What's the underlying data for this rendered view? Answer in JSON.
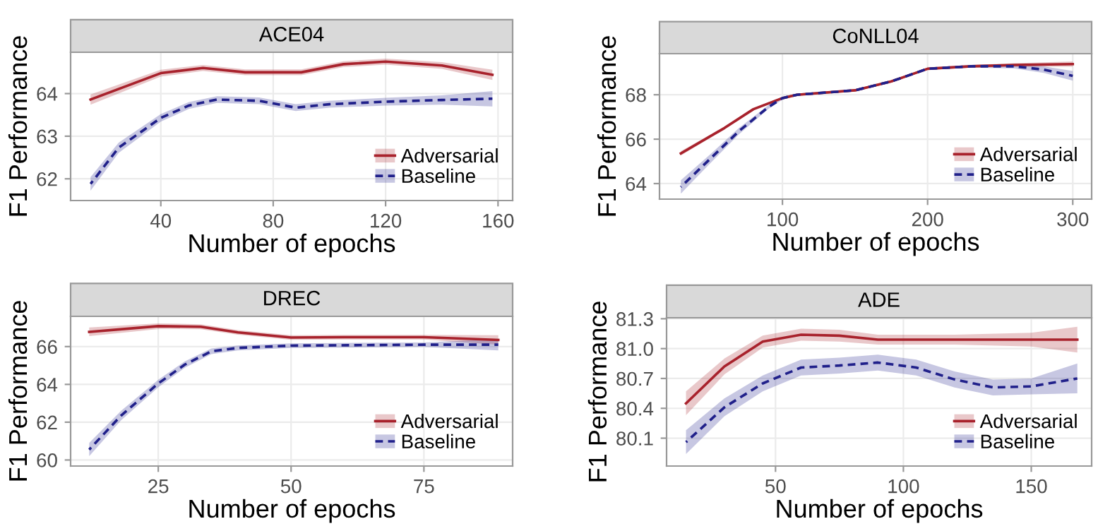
{
  "chart_data": [
    {
      "type": "line",
      "title": "ACE04",
      "xlabel": "Number of epochs",
      "ylabel": "F1 Performance",
      "xlim": [
        7.9,
        165.2
      ],
      "xticks": [
        40,
        80,
        120,
        160
      ],
      "ylim": [
        61.49,
        64.97
      ],
      "yticks": [
        62,
        63,
        64
      ],
      "grid": true,
      "legend": "bottom right",
      "marker": "none",
      "series": [
        {
          "name": "Adversarial",
          "color": "#a8222c",
          "line_style": "solid",
          "x": [
            15,
            40,
            55,
            70,
            90,
            105,
            120,
            140,
            158
          ],
          "values": [
            63.86,
            64.48,
            64.6,
            64.5,
            64.5,
            64.69,
            64.75,
            64.66,
            64.44
          ],
          "lower": [
            63.74,
            64.4,
            64.53,
            64.43,
            64.43,
            64.62,
            64.68,
            64.58,
            64.32
          ],
          "upper": [
            63.98,
            64.56,
            64.67,
            64.57,
            64.57,
            64.76,
            64.82,
            64.74,
            64.56
          ]
        },
        {
          "name": "Baseline",
          "color": "#20208a",
          "line_style": "dashed",
          "x": [
            15,
            25,
            40,
            50,
            60,
            75,
            88,
            100,
            120,
            140,
            158
          ],
          "values": [
            61.88,
            62.73,
            63.43,
            63.72,
            63.86,
            63.83,
            63.67,
            63.75,
            63.81,
            63.85,
            63.88
          ],
          "lower": [
            61.72,
            62.61,
            63.34,
            63.64,
            63.78,
            63.75,
            63.59,
            63.67,
            63.72,
            63.74,
            63.7
          ],
          "upper": [
            62.04,
            62.85,
            63.52,
            63.8,
            63.94,
            63.91,
            63.75,
            63.83,
            63.9,
            63.96,
            64.06
          ]
        }
      ]
    },
    {
      "type": "line",
      "title": "CoNLL04",
      "xlabel": "Number of epochs",
      "ylabel": "F1 Performance",
      "xlim": [
        15.3,
        313
      ],
      "xticks": [
        100,
        200,
        300
      ],
      "ylim": [
        63.3,
        69.85
      ],
      "yticks": [
        64,
        66,
        68
      ],
      "grid": true,
      "legend": "bottom right",
      "marker": "none",
      "series": [
        {
          "name": "Adversarial",
          "color": "#a8222c",
          "line_style": "solid",
          "x": [
            30,
            60,
            80,
            100,
            110,
            150,
            175,
            200,
            230,
            260,
            300
          ],
          "values": [
            65.36,
            66.5,
            67.35,
            67.85,
            68.0,
            68.2,
            68.6,
            69.17,
            69.28,
            69.34,
            69.38
          ],
          "lower": [
            65.26,
            66.44,
            67.3,
            67.8,
            67.95,
            68.15,
            68.55,
            69.12,
            69.22,
            69.26,
            69.26
          ],
          "upper": [
            65.46,
            66.56,
            67.4,
            67.9,
            68.05,
            68.25,
            68.65,
            69.22,
            69.34,
            69.42,
            69.5
          ]
        },
        {
          "name": "Baseline",
          "color": "#20208a",
          "line_style": "dashed",
          "x": [
            30,
            50,
            70,
            90,
            100,
            110,
            150,
            175,
            200,
            230,
            260,
            280,
            300
          ],
          "values": [
            63.85,
            65.1,
            66.36,
            67.43,
            67.85,
            68.0,
            68.2,
            68.6,
            69.17,
            69.28,
            69.28,
            69.13,
            68.85
          ],
          "lower": [
            63.55,
            64.9,
            66.22,
            67.35,
            67.78,
            67.95,
            68.15,
            68.55,
            69.12,
            69.22,
            69.18,
            68.98,
            68.63
          ],
          "upper": [
            64.15,
            65.3,
            66.5,
            67.51,
            67.92,
            68.05,
            68.25,
            68.65,
            69.22,
            69.34,
            69.38,
            69.28,
            69.07
          ]
        }
      ]
    },
    {
      "type": "line",
      "title": "DREC",
      "xlabel": "Number of epochs",
      "ylabel": "F1 Performance",
      "xlim": [
        8.5,
        91.7
      ],
      "xticks": [
        25,
        50,
        75
      ],
      "ylim": [
        59.68,
        67.6
      ],
      "yticks": [
        60,
        62,
        64,
        66
      ],
      "grid": true,
      "legend": "bottom right",
      "marker": "none",
      "series": [
        {
          "name": "Adversarial",
          "color": "#a8222c",
          "line_style": "solid",
          "x": [
            12,
            25,
            33,
            40,
            50,
            60,
            75,
            89
          ],
          "values": [
            66.78,
            67.08,
            67.05,
            66.75,
            66.48,
            66.5,
            66.5,
            66.35
          ],
          "lower": [
            66.55,
            66.93,
            66.92,
            66.63,
            66.36,
            66.38,
            66.38,
            66.1
          ],
          "upper": [
            67.01,
            67.23,
            67.18,
            66.87,
            66.6,
            66.62,
            66.62,
            66.6
          ]
        },
        {
          "name": "Baseline",
          "color": "#20208a",
          "line_style": "dashed",
          "x": [
            12,
            18,
            25,
            30,
            35,
            40,
            50,
            75,
            89
          ],
          "values": [
            60.55,
            62.35,
            64.05,
            65.05,
            65.75,
            65.93,
            66.05,
            66.1,
            66.1
          ],
          "lower": [
            60.2,
            62.1,
            63.85,
            64.88,
            65.6,
            65.8,
            65.93,
            65.98,
            65.8
          ],
          "upper": [
            60.9,
            62.6,
            64.25,
            65.22,
            65.9,
            66.06,
            66.17,
            66.22,
            66.4
          ]
        }
      ]
    },
    {
      "type": "line",
      "title": "ADE",
      "xlabel": "Number of epochs",
      "ylabel": "F1 Performance",
      "xlim": [
        7.4,
        173.6
      ],
      "xticks": [
        50,
        100,
        150
      ],
      "ylim": [
        79.82,
        81.31
      ],
      "yticks": [
        {
          "value": 80.1,
          "label": "80.1"
        },
        {
          "value": 80.4,
          "label": "80.4"
        },
        {
          "value": 80.7,
          "label": "80.7"
        },
        {
          "value": 81.0,
          "label": "81.0"
        },
        {
          "value": 81.3,
          "label": "81.3"
        }
      ],
      "grid": true,
      "legend": "bottom right",
      "marker": "none",
      "series": [
        {
          "name": "Adversarial",
          "color": "#a8222c",
          "line_style": "solid",
          "x": [
            15,
            30,
            45,
            60,
            75,
            90,
            120,
            150,
            168
          ],
          "values": [
            80.45,
            80.82,
            81.07,
            81.14,
            81.13,
            81.09,
            81.09,
            81.09,
            81.09
          ],
          "lower": [
            80.33,
            80.74,
            81.01,
            81.08,
            81.07,
            81.04,
            81.04,
            81.02,
            80.96
          ],
          "upper": [
            80.57,
            80.9,
            81.13,
            81.2,
            81.19,
            81.14,
            81.14,
            81.16,
            81.22
          ]
        },
        {
          "name": "Baseline",
          "color": "#20208a",
          "line_style": "dashed",
          "x": [
            15,
            30,
            45,
            60,
            75,
            90,
            105,
            120,
            135,
            150,
            168
          ],
          "values": [
            80.06,
            80.41,
            80.65,
            80.81,
            80.83,
            80.86,
            80.81,
            80.69,
            80.61,
            80.62,
            80.7
          ],
          "lower": [
            79.94,
            80.32,
            80.57,
            80.73,
            80.75,
            80.78,
            80.73,
            80.61,
            80.53,
            80.54,
            80.55
          ],
          "upper": [
            80.18,
            80.5,
            80.73,
            80.89,
            80.91,
            80.94,
            80.89,
            80.77,
            80.69,
            80.7,
            80.85
          ]
        }
      ]
    }
  ]
}
